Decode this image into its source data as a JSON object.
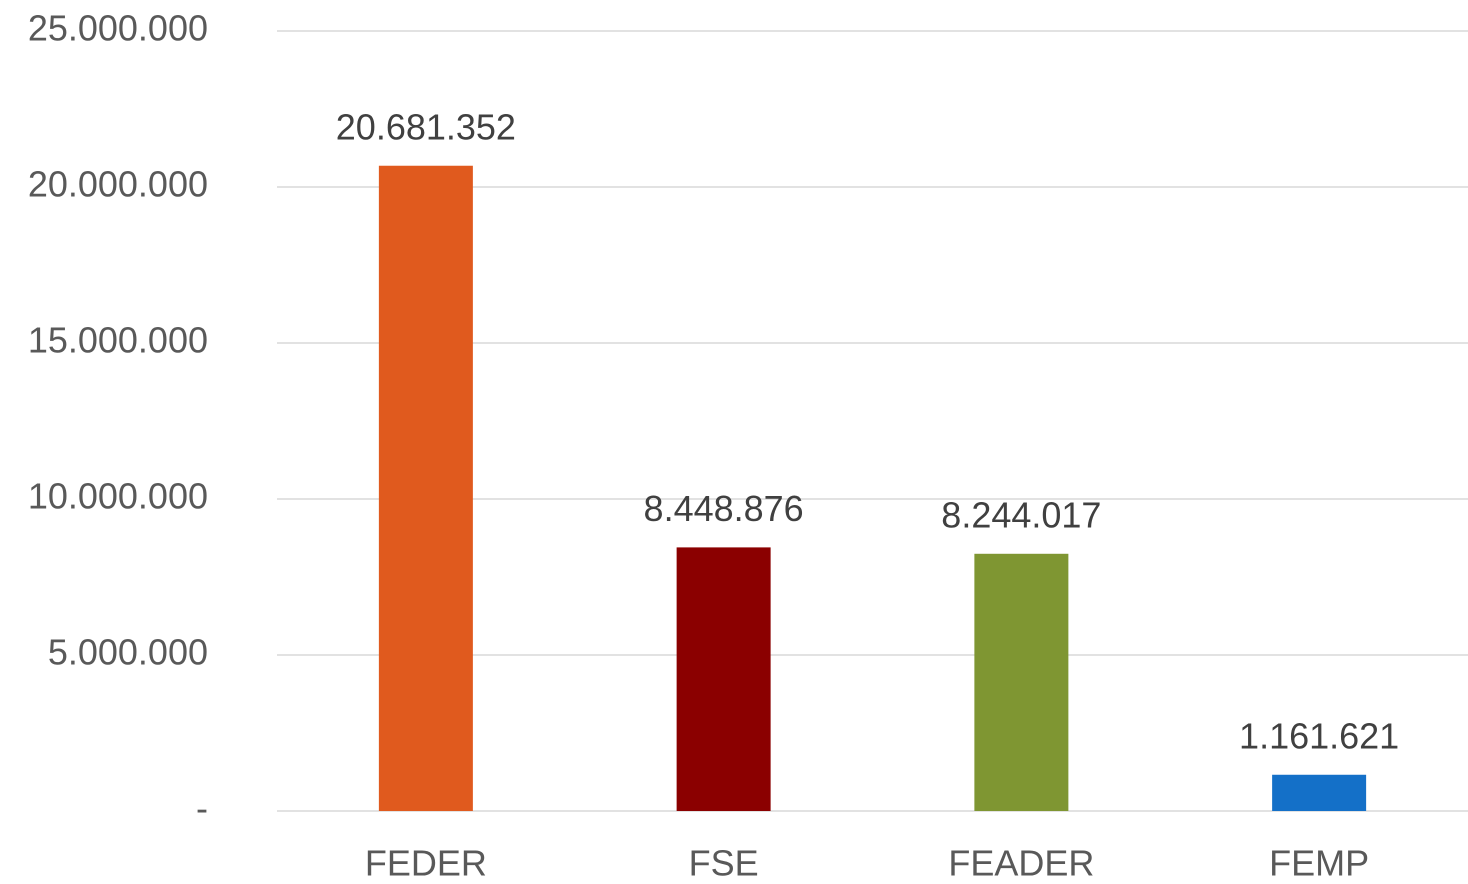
{
  "chart_data": {
    "type": "bar",
    "categories": [
      "FEDER",
      "FSE",
      "FEADER",
      "FEMP"
    ],
    "values": [
      20681352,
      8448876,
      8244017,
      1161621
    ],
    "value_labels": [
      "20.681.352",
      "8.448.876",
      "8.244.017",
      "1.161.621"
    ],
    "colors": [
      "#e05a1e",
      "#8b0000",
      "#7f9632",
      "#1470c8"
    ],
    "ylim": [
      0,
      25000000
    ],
    "yticks": [
      {
        "value": 0,
        "label": "-"
      },
      {
        "value": 5000000,
        "label": "5.000.000"
      },
      {
        "value": 10000000,
        "label": "10.000.000"
      },
      {
        "value": 15000000,
        "label": "15.000.000"
      },
      {
        "value": 20000000,
        "label": "20.000.000"
      },
      {
        "value": 25000000,
        "label": "25.000.000"
      }
    ],
    "grid": true
  }
}
